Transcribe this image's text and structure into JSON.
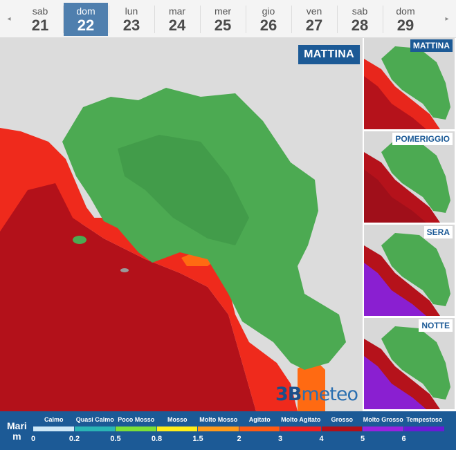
{
  "days": [
    {
      "name": "sab",
      "num": "21",
      "active": false
    },
    {
      "name": "dom",
      "num": "22",
      "active": true
    },
    {
      "name": "lun",
      "num": "23",
      "active": false
    },
    {
      "name": "mar",
      "num": "24",
      "active": false
    },
    {
      "name": "mer",
      "num": "25",
      "active": false
    },
    {
      "name": "gio",
      "num": "26",
      "active": false
    },
    {
      "name": "ven",
      "num": "27",
      "active": false
    },
    {
      "name": "sab",
      "num": "28",
      "active": false
    },
    {
      "name": "dom",
      "num": "29",
      "active": false
    }
  ],
  "nav": {
    "prev": "◂",
    "next": "▸"
  },
  "main": {
    "period": "MATTINA",
    "logo_digit": "3B",
    "logo_text": "meteo"
  },
  "thumbnails": [
    {
      "label": "MATTINA",
      "selected": true,
      "sea": [
        "#e8261c",
        "#b5121b"
      ]
    },
    {
      "label": "POMERIGGIO",
      "selected": false,
      "sea": [
        "#b5121b",
        "#a00f1a"
      ]
    },
    {
      "label": "SERA",
      "selected": false,
      "sea": [
        "#b5121b",
        "#8a1fd1"
      ]
    },
    {
      "label": "NOTTE",
      "selected": false,
      "sea": [
        "#b5121b",
        "#8a1fd1"
      ]
    }
  ],
  "legend": {
    "title_line1": "Mari",
    "title_line2": "m",
    "categories": [
      {
        "label": "Calmo",
        "color": "#cfe8f7"
      },
      {
        "label": "Quasi Calmo",
        "color": "#2ab5b5"
      },
      {
        "label": "Poco Mosso",
        "color": "#7ce037"
      },
      {
        "label": "Mosso",
        "color": "#ffee1a"
      },
      {
        "label": "Molto Mosso",
        "color": "#ff9a1a"
      },
      {
        "label": "Agitato",
        "color": "#ff5a14"
      },
      {
        "label": "Molto Agitato",
        "color": "#ef1f1f"
      },
      {
        "label": "Grosso",
        "color": "#b30f17"
      },
      {
        "label": "Molto Grosso",
        "color": "#9a22e0"
      },
      {
        "label": "Tempestoso",
        "color": "#6a1bd6"
      }
    ],
    "ticks": [
      "0",
      "0.2",
      "0.5",
      "0.8",
      "1.5",
      "2",
      "3",
      "4",
      "5",
      "6"
    ]
  },
  "colors": {
    "land": "#4caa52",
    "land_dark": "#3b8f44",
    "sea_red": "#ef2a1c",
    "sea_dark": "#b3111a",
    "sea_orange": "#ff6a12",
    "bg": "#dcdcdc"
  }
}
